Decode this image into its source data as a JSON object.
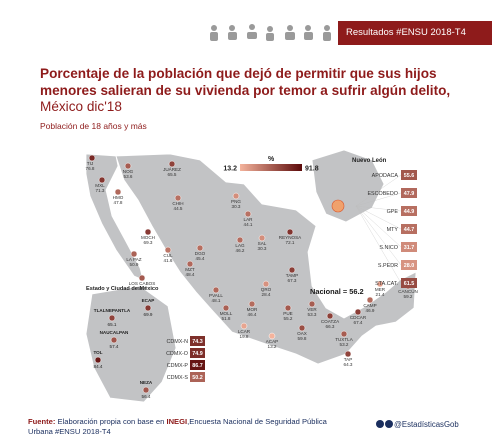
{
  "header": {
    "badge": "Resultados #ENSU 2018-T4",
    "icons": [
      "figure-icons-strip"
    ]
  },
  "title": {
    "main": "Porcentaje de la población que dejó de permitir que sus hijos menores salieran de su vivienda por temor a sufrir algún delito,",
    "date": " México dic'18",
    "subtitle": "Población de 18 años y más"
  },
  "colors": {
    "accent": "#8e1b1b",
    "land": "#c2c3c5",
    "point_low": "#f4b39c",
    "point_high": "#5c0a0a",
    "zone_box": "#f0a16c"
  },
  "chart_data": {
    "type": "map",
    "legend": {
      "unit": "%",
      "min": 13.2,
      "max": 91.8
    },
    "national": {
      "label": "Nacional",
      "value": 56.2
    },
    "points": [
      {
        "label": "TIJ",
        "value": 76.8
      },
      {
        "label": "MXL",
        "value": 71.3
      },
      {
        "label": "NOG",
        "value": 53.6
      },
      {
        "label": "HMO",
        "value": 47.8
      },
      {
        "label": "JUÁREZ",
        "value": 65.5
      },
      {
        "label": "CHIH",
        "value": 44.5
      },
      {
        "label": "MOCH",
        "value": 69.3
      },
      {
        "label": "LA PAZ",
        "value": 50.9
      },
      {
        "label": "LOS CABOS",
        "value": 54.7
      },
      {
        "label": "CUL",
        "value": 41.6
      },
      {
        "label": "DGO",
        "value": 45.4
      },
      {
        "label": "MZT",
        "value": 48.4
      },
      {
        "label": "PNG",
        "value": 30.3
      },
      {
        "label": "LAR",
        "value": 44.1
      },
      {
        "label": "LAG",
        "value": 46.2
      },
      {
        "label": "SAL",
        "value": 30.3
      },
      {
        "label": "REYNOSA",
        "value": 72.1
      },
      {
        "label": "TAMP",
        "value": 67.3
      },
      {
        "label": "QRO",
        "value": 28.4
      },
      {
        "label": "PVALL",
        "value": 48.1
      },
      {
        "label": "MOR",
        "value": 46.4
      },
      {
        "label": "MOLL",
        "value": 51.8
      },
      {
        "label": "LCAR",
        "value": 19.8
      },
      {
        "label": "PUE",
        "value": 55.2
      },
      {
        "label": "ACAP",
        "value": 13.2
      },
      {
        "label": "VER",
        "value": 53.3
      },
      {
        "label": "OAX",
        "value": 59.8
      },
      {
        "label": "COATZA",
        "value": 66.3
      },
      {
        "label": "TUXTLA",
        "value": 53.2
      },
      {
        "label": "TAP",
        "value": 64.3
      },
      {
        "label": "MER",
        "value": 21.4
      },
      {
        "label": "CAMP",
        "value": 46.9
      },
      {
        "label": "CDCAR",
        "value": 67.4
      },
      {
        "label": "CANCÚN",
        "value": 59.2
      }
    ],
    "inset_cdmx": {
      "title": "Estado y Ciudad de México",
      "points": [
        {
          "label": "ECAP",
          "value": 69.9
        },
        {
          "label": "TLALNEPANTLA",
          "value": 65.1
        },
        {
          "label": "NAUCALPAN",
          "value": 57.4
        },
        {
          "label": "TOL",
          "value": 84.4
        },
        {
          "label": "NEZA",
          "value": 56.4
        }
      ],
      "zones": [
        {
          "label": "CDMX-N",
          "value": 74.3
        },
        {
          "label": "CDMX-O",
          "value": 74.9
        },
        {
          "label": "CDMX-P",
          "value": 86.7
        },
        {
          "label": "CDMX-S",
          "value": 50.2
        }
      ]
    },
    "inset_nl": {
      "title": "Nuevo León",
      "rows": [
        {
          "label": "APODACA",
          "value": 55.6
        },
        {
          "label": "ESCOBEDO",
          "value": 47.9
        },
        {
          "label": "GPE",
          "value": 44.9
        },
        {
          "label": "MTY",
          "value": 44.7
        },
        {
          "label": "S.NICO",
          "value": 31.7
        },
        {
          "label": "S.PEDR",
          "value": 28.0
        },
        {
          "label": "STA.CAT.",
          "value": 61.5
        }
      ]
    }
  },
  "footer": {
    "source_label": "Fuente:",
    "source_pre": " Elaboración propia con base en ",
    "source_bold": "INEGI",
    "source_post": ",Encuesta Nacional de Seguridad Pública Urbana #ENSU 2018-T4",
    "handle": "@EstadísticasGob"
  }
}
